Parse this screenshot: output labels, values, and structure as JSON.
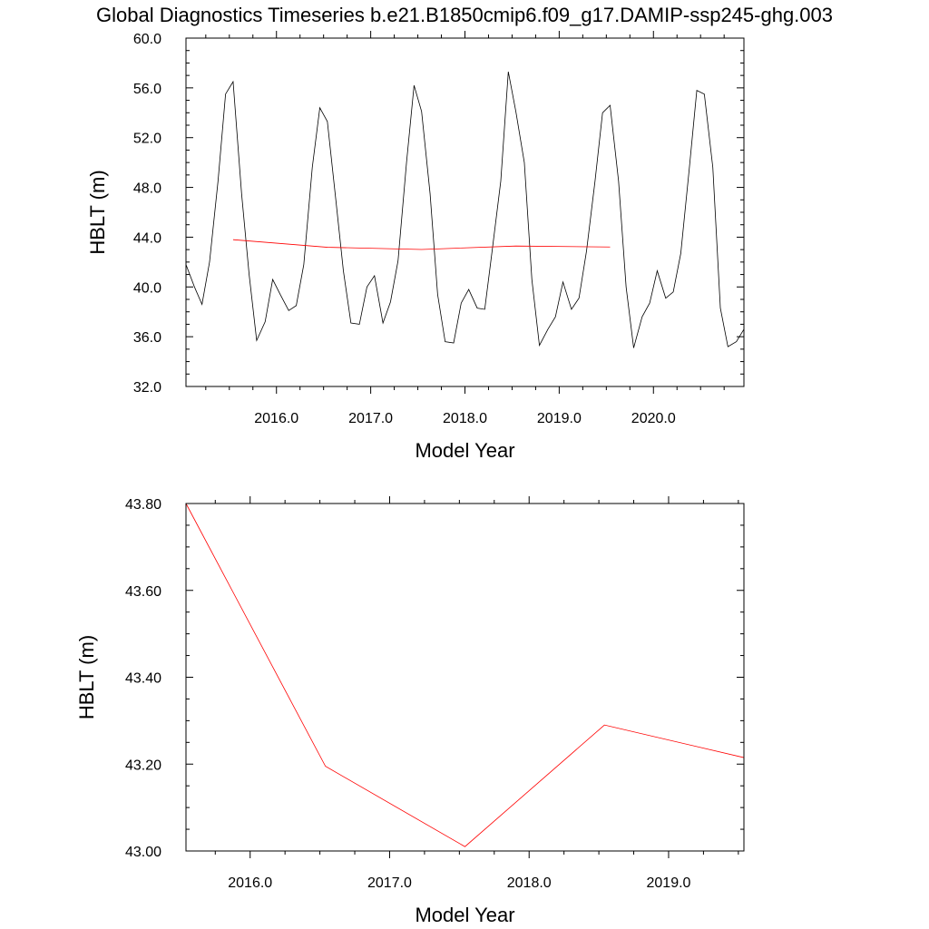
{
  "title": "Global Diagnostics Timeseries b.e21.B1850cmip6.f09_g17.DAMIP-ssp245-ghg.003",
  "colors": {
    "monthly": "#000000",
    "annual": "#ff0000",
    "frame": "#000000"
  },
  "chart_data": [
    {
      "type": "line",
      "xlabel": "Model Year",
      "ylabel": "HBLT (m)",
      "xlim": [
        2015.04,
        2020.96
      ],
      "ylim": [
        32.0,
        60.0
      ],
      "yticks": [
        "32.0",
        "36.0",
        "40.0",
        "44.0",
        "48.0",
        "52.0",
        "56.0",
        "60.0"
      ],
      "xticks": [
        "2016.0",
        "2017.0",
        "2018.0",
        "2019.0",
        "2020.0"
      ],
      "series": [
        {
          "x": [
            2015.04,
            2015.13,
            2015.21,
            2015.29,
            2015.38,
            2015.46,
            2015.54,
            2015.63,
            2015.71,
            2015.79,
            2015.88,
            2015.96,
            2016.04,
            2016.13,
            2016.21,
            2016.29,
            2016.38,
            2016.46,
            2016.54,
            2016.63,
            2016.71,
            2016.79,
            2016.88,
            2016.96,
            2017.04,
            2017.13,
            2017.21,
            2017.29,
            2017.38,
            2017.46,
            2017.54,
            2017.63,
            2017.71,
            2017.79,
            2017.88,
            2017.96,
            2018.04,
            2018.13,
            2018.21,
            2018.29,
            2018.38,
            2018.46,
            2018.54,
            2018.63,
            2018.71,
            2018.79,
            2018.88,
            2018.96,
            2019.04,
            2019.13,
            2019.21,
            2019.29,
            2019.38,
            2019.46,
            2019.54,
            2019.63,
            2019.71,
            2019.79,
            2019.88,
            2019.96,
            2020.04,
            2020.13,
            2020.21,
            2020.29,
            2020.38,
            2020.46,
            2020.54,
            2020.63,
            2020.71,
            2020.79,
            2020.88,
            2020.96
          ],
          "y": [
            41.8,
            40.0,
            38.6,
            42.0,
            48.5,
            55.5,
            56.5,
            47.5,
            41.0,
            35.7,
            37.2,
            40.6,
            39.4,
            38.1,
            38.5,
            41.8,
            49.6,
            54.4,
            53.3,
            47.0,
            41.3,
            37.1,
            37.0,
            40.0,
            40.9,
            37.1,
            38.8,
            42.1,
            50.0,
            56.2,
            54.1,
            47.5,
            39.4,
            35.6,
            35.5,
            38.7,
            39.8,
            38.3,
            38.2,
            43.0,
            48.5,
            57.3,
            54.1,
            50.0,
            40.6,
            35.3,
            36.6,
            37.6,
            40.4,
            38.2,
            39.1,
            42.9,
            48.5,
            54.0,
            54.6,
            48.5,
            40.0,
            35.1,
            37.6,
            38.7,
            41.3,
            39.1,
            39.6,
            42.7,
            49.5,
            55.8,
            55.5,
            49.6,
            38.3,
            35.2,
            35.6,
            36.6
          ]
        },
        {
          "x": [
            2015.54,
            2016.54,
            2017.54,
            2018.54,
            2019.54
          ],
          "y": [
            43.8,
            43.19,
            43.01,
            43.29,
            43.21
          ]
        }
      ]
    },
    {
      "type": "line",
      "xlabel": "Model Year",
      "ylabel": "HBLT (m)",
      "xlim": [
        2015.54,
        2019.54
      ],
      "ylim": [
        43.0,
        43.8
      ],
      "yticks": [
        "43.00",
        "43.20",
        "43.40",
        "43.60",
        "43.80"
      ],
      "xticks": [
        "2016.0",
        "2017.0",
        "2018.0",
        "2019.0"
      ],
      "series": [
        {
          "x": [
            2015.54,
            2016.54,
            2017.54,
            2018.54,
            2019.54
          ],
          "y": [
            43.8,
            43.195,
            43.01,
            43.29,
            43.215
          ]
        }
      ]
    }
  ]
}
